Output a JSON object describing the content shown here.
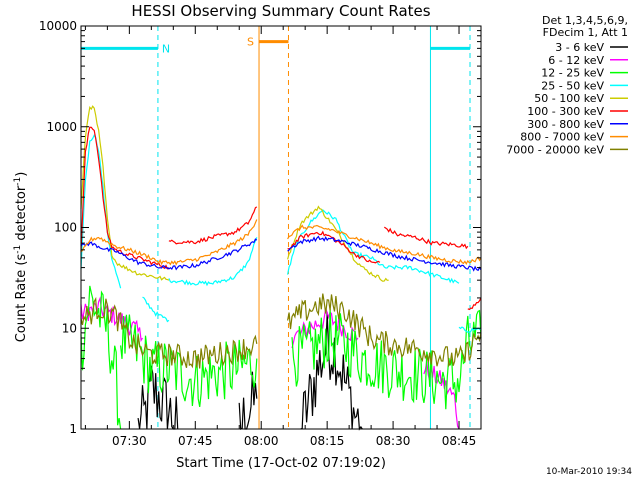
{
  "chart_data": {
    "type": "line",
    "title": "HESSI Observing Summary Count Rates",
    "xlabel": "Start Time (17-Oct-02 07:19:02)",
    "ylabel_pre": "Count Rate (s",
    "ylabel_sup": "-1",
    "ylabel_post": " detector",
    "ylabel_sup2": "-1",
    "ylabel_end": ")",
    "y_scale": "log",
    "ylim": [
      1,
      10000
    ],
    "xlim_minutes": [
      0,
      91
    ],
    "y_ticks": [
      {
        "v": 1,
        "label": "1"
      },
      {
        "v": 10,
        "label": "10"
      },
      {
        "v": 100,
        "label": "100"
      },
      {
        "v": 1000,
        "label": "1000"
      },
      {
        "v": 10000,
        "label": "10000"
      }
    ],
    "x_ticks": [
      {
        "m": 11,
        "label": "07:30"
      },
      {
        "m": 26,
        "label": "07:45"
      },
      {
        "m": 41,
        "label": "08:00"
      },
      {
        "m": 56,
        "label": "08:15"
      },
      {
        "m": 71,
        "label": "08:30"
      },
      {
        "m": 86,
        "label": "08:45"
      }
    ],
    "legend_header": [
      "Det 1,3,4,5,6,9,",
      "FDecim 1, Att 1"
    ],
    "legend_placement": "right",
    "timestamp": "10-Mar-2010 19:34",
    "flags": [
      {
        "label": "N",
        "color": "#00e5ee",
        "start": 0,
        "end": 17.5,
        "level": 6000,
        "style": "solid-dash"
      },
      {
        "label": "S",
        "color": "#ff8c00",
        "start": 40.5,
        "end": 47.2,
        "level": 7000,
        "style": "solid-dash"
      },
      {
        "label": "",
        "color": "#00e5ee",
        "start": 79.5,
        "end": 88.5,
        "level": 6000,
        "style": "solid-dash"
      }
    ],
    "series": [
      {
        "name": "3 - 6 keV",
        "color": "#000000",
        "noise": 0.35,
        "segments": [
          [
            [
              13,
              1
            ],
            [
              15,
              1.5
            ],
            [
              16,
              2.5
            ],
            [
              18,
              2
            ],
            [
              20,
              1.5
            ],
            [
              22,
              1
            ]
          ],
          [
            [
              36,
              1
            ],
            [
              38,
              1.5
            ],
            [
              40,
              2
            ]
          ],
          [
            [
              50,
              1
            ],
            [
              52,
              2
            ],
            [
              54,
              4
            ],
            [
              56,
              7
            ],
            [
              58,
              6
            ],
            [
              60,
              3
            ],
            [
              62,
              1.5
            ],
            [
              64,
              1
            ]
          ]
        ]
      },
      {
        "name": "6 - 12 keV",
        "color": "#ff00ff",
        "noise": 0.1,
        "segments": [
          [
            [
              0,
              14
            ],
            [
              4,
              16
            ],
            [
              8,
              13
            ],
            [
              12,
              10
            ],
            [
              14,
              8
            ]
          ],
          [
            [
              48,
              8
            ],
            [
              52,
              10
            ],
            [
              56,
              13
            ],
            [
              60,
              10
            ],
            [
              63,
              8
            ]
          ],
          [
            [
              78,
              4
            ],
            [
              82,
              3
            ],
            [
              85,
              2
            ],
            [
              86,
              1
            ]
          ]
        ]
      },
      {
        "name": "12 - 25 keV",
        "color": "#00ff00",
        "noise": 0.3,
        "segments": [
          [
            [
              0,
              6
            ],
            [
              2,
              20
            ],
            [
              4,
              14
            ],
            [
              6,
              10
            ],
            [
              8,
              3
            ],
            [
              9,
              1
            ]
          ],
          [
            [
              9,
              8
            ],
            [
              13,
              6
            ],
            [
              16,
              4
            ],
            [
              20,
              4
            ],
            [
              26,
              3
            ],
            [
              30,
              3.5
            ],
            [
              36,
              4
            ],
            [
              40,
              5
            ]
          ],
          [
            [
              48,
              5
            ],
            [
              52,
              6
            ],
            [
              56,
              8
            ],
            [
              60,
              7
            ],
            [
              64,
              5
            ],
            [
              70,
              4
            ],
            [
              76,
              3.5
            ],
            [
              82,
              3
            ],
            [
              86,
              3
            ],
            [
              88,
              7
            ],
            [
              91,
              8
            ]
          ]
        ]
      },
      {
        "name": "25 - 50 keV",
        "color": "#00ffff",
        "noise": 0.02,
        "segments": [
          [
            [
              0,
              40
            ],
            [
              1,
              300
            ],
            [
              2,
              700
            ],
            [
              3,
              850
            ],
            [
              4,
              600
            ],
            [
              5,
              250
            ],
            [
              6,
              90
            ],
            [
              7,
              50
            ],
            [
              8,
              35
            ],
            [
              9,
              25
            ]
          ],
          [
            [
              14,
              20
            ],
            [
              17,
              14
            ],
            [
              20,
              12
            ]
          ],
          [
            [
              20,
              30
            ],
            [
              26,
              28
            ],
            [
              30,
              28
            ],
            [
              35,
              32
            ],
            [
              38,
              45
            ],
            [
              40,
              80
            ]
          ],
          [
            [
              47,
              35
            ],
            [
              49,
              70
            ],
            [
              52,
              110
            ],
            [
              55,
              150
            ],
            [
              58,
              120
            ],
            [
              60,
              80
            ],
            [
              62,
              55
            ],
            [
              66,
              50
            ],
            [
              69,
              40
            ],
            [
              75,
              40
            ],
            [
              80,
              34
            ],
            [
              86,
              28
            ]
          ],
          [
            [
              86,
              10
            ],
            [
              88,
              9.5
            ],
            [
              91,
              10
            ]
          ]
        ]
      },
      {
        "name": "50 - 100 keV",
        "color": "#cccc00",
        "noise": 0.02,
        "segments": [
          [
            [
              0,
              150
            ],
            [
              1,
              800
            ],
            [
              2,
              1600
            ],
            [
              3,
              1500
            ],
            [
              4,
              900
            ],
            [
              5,
              400
            ],
            [
              6,
              120
            ],
            [
              7,
              55
            ],
            [
              8,
              45
            ],
            [
              10,
              40
            ],
            [
              13,
              35
            ],
            [
              16,
              33
            ],
            [
              20,
              30
            ]
          ],
          [
            [
              47,
              50
            ],
            [
              50,
              110
            ],
            [
              54,
              160
            ],
            [
              57,
              110
            ],
            [
              60,
              70
            ],
            [
              62,
              50
            ],
            [
              64,
              40
            ],
            [
              66,
              35
            ],
            [
              69,
              30
            ],
            [
              70,
              30
            ]
          ]
        ]
      },
      {
        "name": "100 - 300 keV",
        "color": "#ff0000",
        "noise": 0.02,
        "segments": [
          [
            [
              0,
              60
            ],
            [
              1,
              550
            ],
            [
              2,
              1000
            ],
            [
              3,
              950
            ],
            [
              4,
              500
            ],
            [
              5,
              200
            ],
            [
              6,
              90
            ],
            [
              7,
              65
            ],
            [
              8,
              60
            ],
            [
              10,
              55
            ],
            [
              13,
              50
            ],
            [
              16,
              45
            ],
            [
              20,
              40
            ]
          ],
          [
            [
              20,
              72
            ],
            [
              26,
              72
            ],
            [
              30,
              80
            ],
            [
              35,
              90
            ],
            [
              38,
              110
            ],
            [
              40,
              160
            ]
          ],
          [
            [
              47,
              60
            ],
            [
              50,
              80
            ],
            [
              54,
              90
            ],
            [
              57,
              80
            ],
            [
              60,
              65
            ],
            [
              62,
              55
            ],
            [
              64,
              50
            ],
            [
              66,
              45
            ],
            [
              68,
              45
            ]
          ],
          [
            [
              69,
              100
            ],
            [
              72,
              85
            ],
            [
              76,
              80
            ],
            [
              80,
              70
            ],
            [
              84,
              68
            ],
            [
              88,
              65
            ]
          ],
          [
            [
              88,
              15
            ],
            [
              91,
              20
            ]
          ]
        ]
      },
      {
        "name": "300 - 800 keV",
        "color": "#0000ff",
        "noise": 0.02,
        "segments": [
          [
            [
              0,
              65
            ],
            [
              2,
              70
            ],
            [
              4,
              65
            ],
            [
              6,
              60
            ],
            [
              8,
              58
            ],
            [
              10,
              52
            ],
            [
              13,
              45
            ],
            [
              16,
              42
            ],
            [
              18,
              40
            ],
            [
              22,
              40
            ],
            [
              26,
              42
            ],
            [
              30,
              48
            ],
            [
              35,
              58
            ],
            [
              38,
              68
            ],
            [
              40,
              75
            ]
          ],
          [
            [
              47,
              60
            ],
            [
              50,
              72
            ],
            [
              54,
              78
            ],
            [
              57,
              76
            ],
            [
              60,
              72
            ],
            [
              64,
              65
            ],
            [
              68,
              58
            ],
            [
              72,
              52
            ],
            [
              76,
              48
            ],
            [
              80,
              45
            ],
            [
              84,
              42
            ],
            [
              88,
              40
            ],
            [
              91,
              38
            ]
          ]
        ]
      },
      {
        "name": "800 - 7000 keV",
        "color": "#ff8c00",
        "noise": 0.02,
        "segments": [
          [
            [
              0,
              55
            ],
            [
              2,
              75
            ],
            [
              4,
              80
            ],
            [
              6,
              72
            ],
            [
              8,
              65
            ],
            [
              12,
              58
            ],
            [
              16,
              50
            ],
            [
              18,
              45
            ],
            [
              22,
              45
            ],
            [
              26,
              48
            ],
            [
              30,
              55
            ],
            [
              35,
              70
            ],
            [
              38,
              85
            ],
            [
              40,
              120
            ]
          ],
          [
            [
              47,
              80
            ],
            [
              50,
              100
            ],
            [
              54,
              100
            ],
            [
              57,
              95
            ],
            [
              60,
              85
            ],
            [
              64,
              75
            ],
            [
              68,
              65
            ],
            [
              72,
              58
            ],
            [
              76,
              55
            ],
            [
              80,
              50
            ],
            [
              84,
              47
            ],
            [
              88,
              45
            ],
            [
              91,
              50
            ]
          ]
        ]
      },
      {
        "name": "7000 - 20000 keV",
        "color": "#808000",
        "noise": 0.12,
        "segments": [
          [
            [
              0,
              12
            ],
            [
              2,
              14
            ],
            [
              4,
              16
            ],
            [
              6,
              15
            ],
            [
              8,
              13
            ],
            [
              10,
              9
            ],
            [
              12,
              7
            ],
            [
              14,
              6
            ],
            [
              16,
              5.5
            ],
            [
              20,
              5.5
            ],
            [
              26,
              5
            ],
            [
              30,
              5.5
            ],
            [
              35,
              6
            ],
            [
              38,
              6.5
            ],
            [
              40,
              7
            ]
          ],
          [
            [
              47,
              11
            ],
            [
              50,
              14
            ],
            [
              54,
              17
            ],
            [
              57,
              17
            ],
            [
              60,
              15
            ],
            [
              63,
              11
            ],
            [
              66,
              8
            ],
            [
              70,
              7
            ],
            [
              74,
              6.5
            ],
            [
              78,
              6
            ],
            [
              84,
              5
            ],
            [
              87,
              5
            ],
            [
              89,
              7
            ],
            [
              91,
              9
            ]
          ]
        ]
      }
    ]
  }
}
